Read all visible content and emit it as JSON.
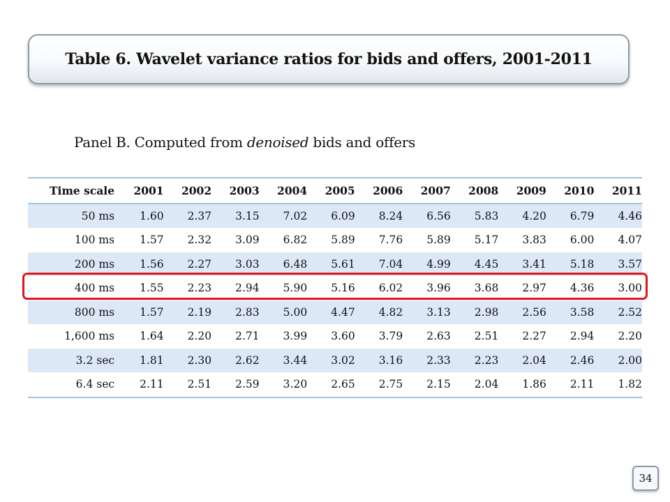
{
  "title": "Table 6. Wavelet variance ratios for bids and offers, 2001-2011",
  "panel": {
    "prefix": "Panel B. Computed from ",
    "emphasis": "denoised",
    "suffix": " bids and offers"
  },
  "table": {
    "header": [
      "Time scale",
      "2001",
      "2002",
      "2003",
      "2004",
      "2005",
      "2006",
      "2007",
      "2008",
      "2009",
      "2010",
      "2011"
    ],
    "rows": [
      [
        "50 ms",
        "1.60",
        "2.37",
        "3.15",
        "7.02",
        "6.09",
        "8.24",
        "6.56",
        "5.83",
        "4.20",
        "6.79",
        "4.46"
      ],
      [
        "100 ms",
        "1.57",
        "2.32",
        "3.09",
        "6.82",
        "5.89",
        "7.76",
        "5.89",
        "5.17",
        "3.83",
        "6.00",
        "4.07"
      ],
      [
        "200 ms",
        "1.56",
        "2.27",
        "3.03",
        "6.48",
        "5.61",
        "7.04",
        "4.99",
        "4.45",
        "3.41",
        "5.18",
        "3.57"
      ],
      [
        "400 ms",
        "1.55",
        "2.23",
        "2.94",
        "5.90",
        "5.16",
        "6.02",
        "3.96",
        "3.68",
        "2.97",
        "4.36",
        "3.00"
      ],
      [
        "800 ms",
        "1.57",
        "2.19",
        "2.83",
        "5.00",
        "4.47",
        "4.82",
        "3.13",
        "2.98",
        "2.56",
        "3.58",
        "2.52"
      ],
      [
        "1,600 ms",
        "1.64",
        "2.20",
        "2.71",
        "3.99",
        "3.60",
        "3.79",
        "2.63",
        "2.51",
        "2.27",
        "2.94",
        "2.20"
      ],
      [
        "3.2 sec",
        "1.81",
        "2.30",
        "2.62",
        "3.44",
        "3.02",
        "3.16",
        "2.33",
        "2.23",
        "2.04",
        "2.46",
        "2.00"
      ],
      [
        "6.4 sec",
        "2.11",
        "2.51",
        "2.59",
        "3.20",
        "2.65",
        "2.75",
        "2.15",
        "2.04",
        "1.86",
        "2.11",
        "1.82"
      ]
    ],
    "highlighted_row": "400 ms"
  },
  "colors": {
    "highlight": "#e3141b",
    "band": "#dde8f6",
    "rule": "#9cc3e6"
  },
  "page_number": "34"
}
